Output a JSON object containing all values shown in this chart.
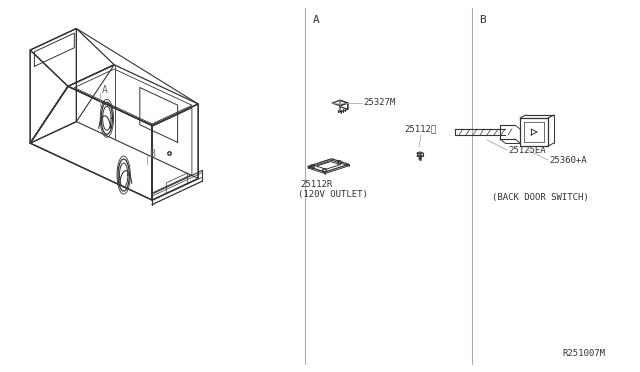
{
  "bg_color": "#ffffff",
  "line_color": "#333333",
  "text_color": "#333333",
  "divider_color": "#aaaaaa",
  "section_a_label": "A",
  "section_b_label": "B",
  "part_label_25327M": "25327M",
  "part_label_25112II": "25112Ⅱ",
  "part_label_25112R": "25112R",
  "part_label_outlet": "(120V OUTLET)",
  "part_label_25125EA": "25125EA",
  "part_label_25360A": "25360+A",
  "part_label_back_door": "(BACK DOOR SWITCH)",
  "ref_code": "R251007M",
  "label_A_car": "A",
  "label_B_car": "B"
}
